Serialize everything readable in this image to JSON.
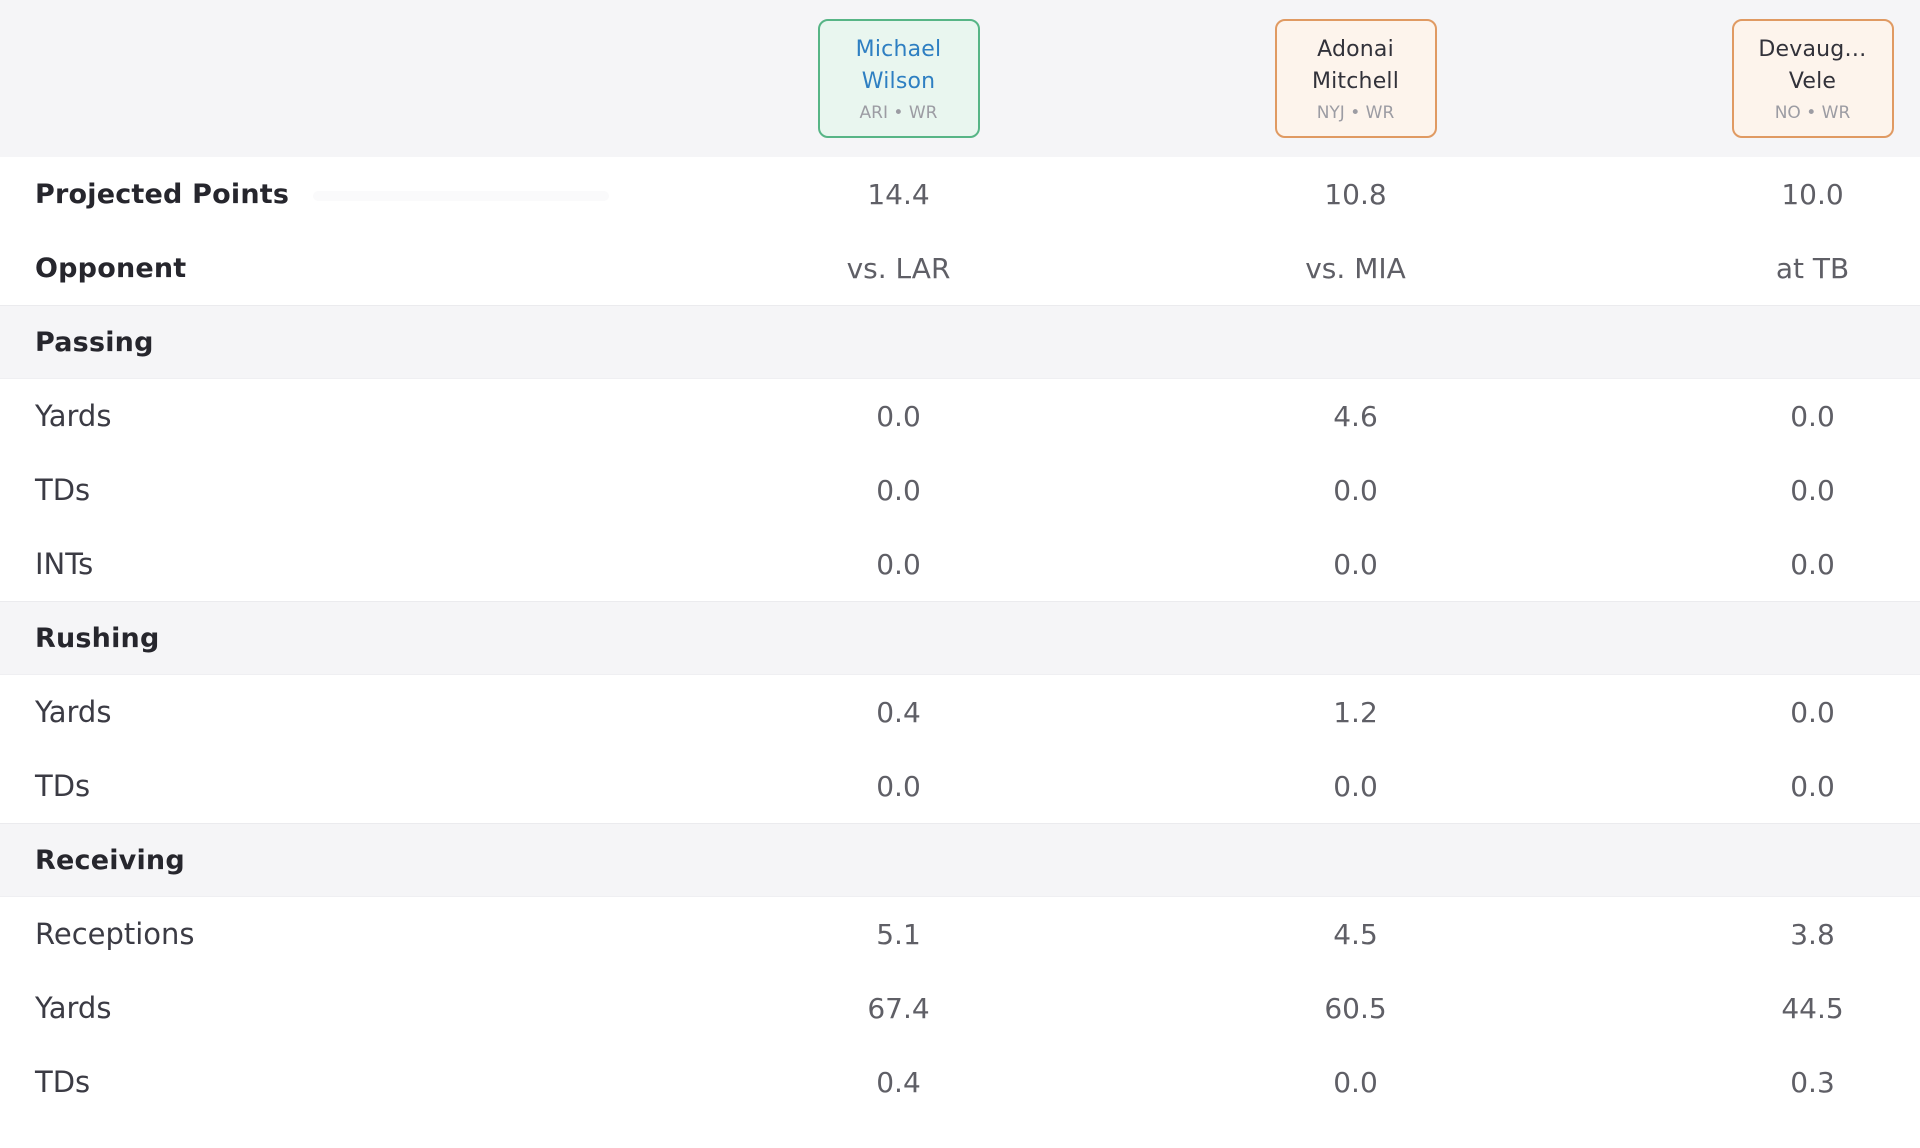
{
  "table_title": "player-projections-comparison",
  "players": [
    {
      "first_line": "Michael",
      "last_line": "Wilson",
      "team_pos": "ARI • WR",
      "card_bg": "#e9f6ef",
      "card_border": "#57b586",
      "name_color": "#2e7fc2"
    },
    {
      "first_line": "Adonai",
      "last_line": "Mitchell",
      "team_pos": "NYJ • WR",
      "card_bg": "#fdf4ec",
      "card_border": "#e09a62",
      "name_color": "#32323a"
    },
    {
      "first_line": "Devaug…",
      "last_line": "Vele",
      "team_pos": "NO • WR",
      "card_bg": "#fdf4ec",
      "card_border": "#e09a62",
      "name_color": "#32323a"
    }
  ],
  "rows": [
    {
      "type": "stat-bold",
      "label": "Projected Points",
      "values": [
        "14.4",
        "10.8",
        "10.0"
      ]
    },
    {
      "type": "stat-bold",
      "label": "Opponent",
      "values": [
        "vs. LAR",
        "vs. MIA",
        "at TB"
      ]
    },
    {
      "type": "section",
      "label": "Passing",
      "values": []
    },
    {
      "type": "stat",
      "label": "Yards",
      "values": [
        "0.0",
        "4.6",
        "0.0"
      ]
    },
    {
      "type": "stat",
      "label": "TDs",
      "values": [
        "0.0",
        "0.0",
        "0.0"
      ]
    },
    {
      "type": "stat",
      "label": "INTs",
      "values": [
        "0.0",
        "0.0",
        "0.0"
      ]
    },
    {
      "type": "section",
      "label": "Rushing",
      "values": []
    },
    {
      "type": "stat",
      "label": "Yards",
      "values": [
        "0.4",
        "1.2",
        "0.0"
      ]
    },
    {
      "type": "stat",
      "label": "TDs",
      "values": [
        "0.0",
        "0.0",
        "0.0"
      ]
    },
    {
      "type": "section",
      "label": "Receiving",
      "values": []
    },
    {
      "type": "stat",
      "label": "Receptions",
      "values": [
        "5.1",
        "4.5",
        "3.8"
      ]
    },
    {
      "type": "stat",
      "label": "Yards",
      "values": [
        "67.4",
        "60.5",
        "44.5"
      ]
    },
    {
      "type": "stat",
      "label": "TDs",
      "values": [
        "0.4",
        "0.0",
        "0.3"
      ]
    }
  ],
  "colors": {
    "band_bg": "#f5f5f7",
    "row_bg": "#ffffff",
    "section_border": "#ebebee",
    "bold_label": "#26262d",
    "stat_label": "#3b3b44",
    "value_text": "#5f5f66",
    "green_card_bg": "#e9f6ef",
    "green_card_border": "#57b586",
    "orange_card_bg": "#fdf4ec",
    "orange_card_border": "#e09a62",
    "link_name": "#2e7fc2",
    "dark_name": "#32323a",
    "meta_text": "#9c9ca3"
  }
}
